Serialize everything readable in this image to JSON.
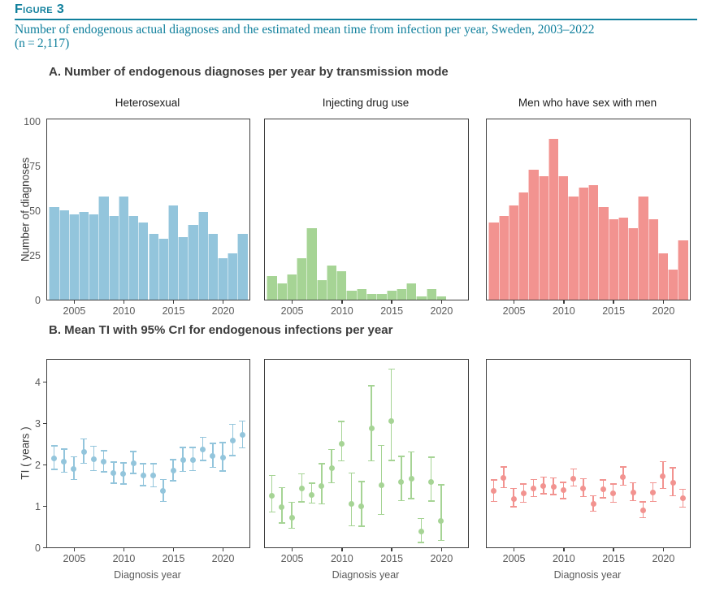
{
  "header": {
    "figure_label": "Figure 3",
    "title_line1": "Number of endogenous actual diagnoses and the estimated mean time from infection per year, Sweden, 2003–2022",
    "title_line2": "(n = 2,117)",
    "accent_color": "#0f7f9c"
  },
  "chart_data": [
    {
      "type": "bar",
      "section_title": "A. Number of endogenous diagnoses per year by transmission mode",
      "ylabel": "Number of diagnoses",
      "ylim": [
        0,
        101
      ],
      "yticks": [
        0,
        25,
        50,
        75,
        100
      ],
      "xticks": [
        2005,
        2010,
        2015,
        2020
      ],
      "years": [
        2003,
        2004,
        2005,
        2006,
        2007,
        2008,
        2009,
        2010,
        2011,
        2012,
        2013,
        2014,
        2015,
        2016,
        2017,
        2018,
        2019,
        2020,
        2021,
        2022
      ],
      "grid": false,
      "series": [
        {
          "name": "Heterosexual",
          "color": "#93c5dc",
          "values": [
            52,
            50,
            48,
            49,
            48,
            58,
            47,
            58,
            47,
            43,
            37,
            34,
            53,
            35,
            42,
            49,
            37,
            23,
            26,
            37
          ]
        },
        {
          "name": "Injecting drug use",
          "color": "#a6d495",
          "values": [
            13,
            9,
            14,
            23,
            40,
            11,
            19,
            16,
            5,
            6,
            3,
            3,
            5,
            6,
            9,
            2,
            6,
            2,
            0,
            0
          ]
        },
        {
          "name": "Men who have sex with men",
          "color": "#f29390",
          "values": [
            43,
            47,
            53,
            60,
            73,
            69,
            90,
            69,
            58,
            63,
            64,
            52,
            45,
            46,
            40,
            58,
            45,
            26,
            17,
            33
          ]
        }
      ]
    },
    {
      "type": "scatter-errorbar",
      "section_title": "B. Mean TI with 95% CrI for endogenous infections per year",
      "ylabel": "TI ( years )",
      "xlabel": "Diagnosis year",
      "ylim": [
        0,
        4.53
      ],
      "yticks": [
        0,
        1,
        2,
        3,
        4
      ],
      "xticks": [
        2005,
        2010,
        2015,
        2020
      ],
      "years": [
        2003,
        2004,
        2005,
        2006,
        2007,
        2008,
        2009,
        2010,
        2011,
        2012,
        2013,
        2014,
        2015,
        2016,
        2017,
        2018,
        2019,
        2020,
        2021,
        2022
      ],
      "grid": false,
      "series": [
        {
          "name": "Heterosexual",
          "color": "#93c5dc",
          "mean": [
            2.15,
            2.07,
            1.9,
            2.3,
            2.12,
            2.06,
            1.79,
            1.77,
            2.02,
            1.74,
            1.73,
            1.36,
            1.86,
            2.1,
            2.1,
            2.37,
            2.2,
            2.16,
            2.58,
            2.71
          ],
          "lo": [
            1.88,
            1.81,
            1.64,
            2.03,
            1.85,
            1.82,
            1.55,
            1.53,
            1.78,
            1.49,
            1.46,
            1.11,
            1.61,
            1.83,
            1.85,
            2.1,
            1.93,
            1.84,
            2.22,
            2.4
          ],
          "hi": [
            2.45,
            2.37,
            2.19,
            2.62,
            2.44,
            2.33,
            2.06,
            2.04,
            2.31,
            2.02,
            2.02,
            1.64,
            2.12,
            2.41,
            2.41,
            2.66,
            2.51,
            2.53,
            2.97,
            3.05
          ]
        },
        {
          "name": "Injecting drug use",
          "color": "#a6d495",
          "mean": [
            1.25,
            0.97,
            0.72,
            1.42,
            1.27,
            1.48,
            1.92,
            2.5,
            1.04,
            1.0,
            2.87,
            1.51,
            3.05,
            1.58,
            1.66,
            0.38,
            1.57,
            0.64,
            null,
            null
          ],
          "lo": [
            0.85,
            0.59,
            0.46,
            1.1,
            1.07,
            1.05,
            1.56,
            2.09,
            0.52,
            0.51,
            2.09,
            0.79,
            2.1,
            1.13,
            1.18,
            0.12,
            1.12,
            0.17,
            null,
            null
          ],
          "hi": [
            1.74,
            1.44,
            1.09,
            1.77,
            1.55,
            2.02,
            2.36,
            3.04,
            1.79,
            1.59,
            3.9,
            2.46,
            4.3,
            2.2,
            2.3,
            0.7,
            2.18,
            1.51,
            null,
            null
          ]
        },
        {
          "name": "Men who have sex with men",
          "color": "#f29390",
          "mean": [
            1.36,
            1.68,
            1.17,
            1.3,
            1.43,
            1.48,
            1.46,
            1.38,
            1.66,
            1.43,
            1.04,
            1.4,
            1.3,
            1.69,
            1.33,
            0.89,
            1.32,
            1.72,
            1.55,
            1.18
          ],
          "lo": [
            1.11,
            1.44,
            0.98,
            1.09,
            1.23,
            1.29,
            1.27,
            1.18,
            1.48,
            1.23,
            0.87,
            1.2,
            1.09,
            1.5,
            1.13,
            0.72,
            1.11,
            1.42,
            1.25,
            0.97
          ],
          "hi": [
            1.63,
            1.94,
            1.42,
            1.53,
            1.64,
            1.7,
            1.68,
            1.57,
            1.89,
            1.66,
            1.25,
            1.63,
            1.53,
            1.94,
            1.56,
            1.1,
            1.56,
            2.07,
            1.92,
            1.4
          ]
        }
      ]
    }
  ]
}
